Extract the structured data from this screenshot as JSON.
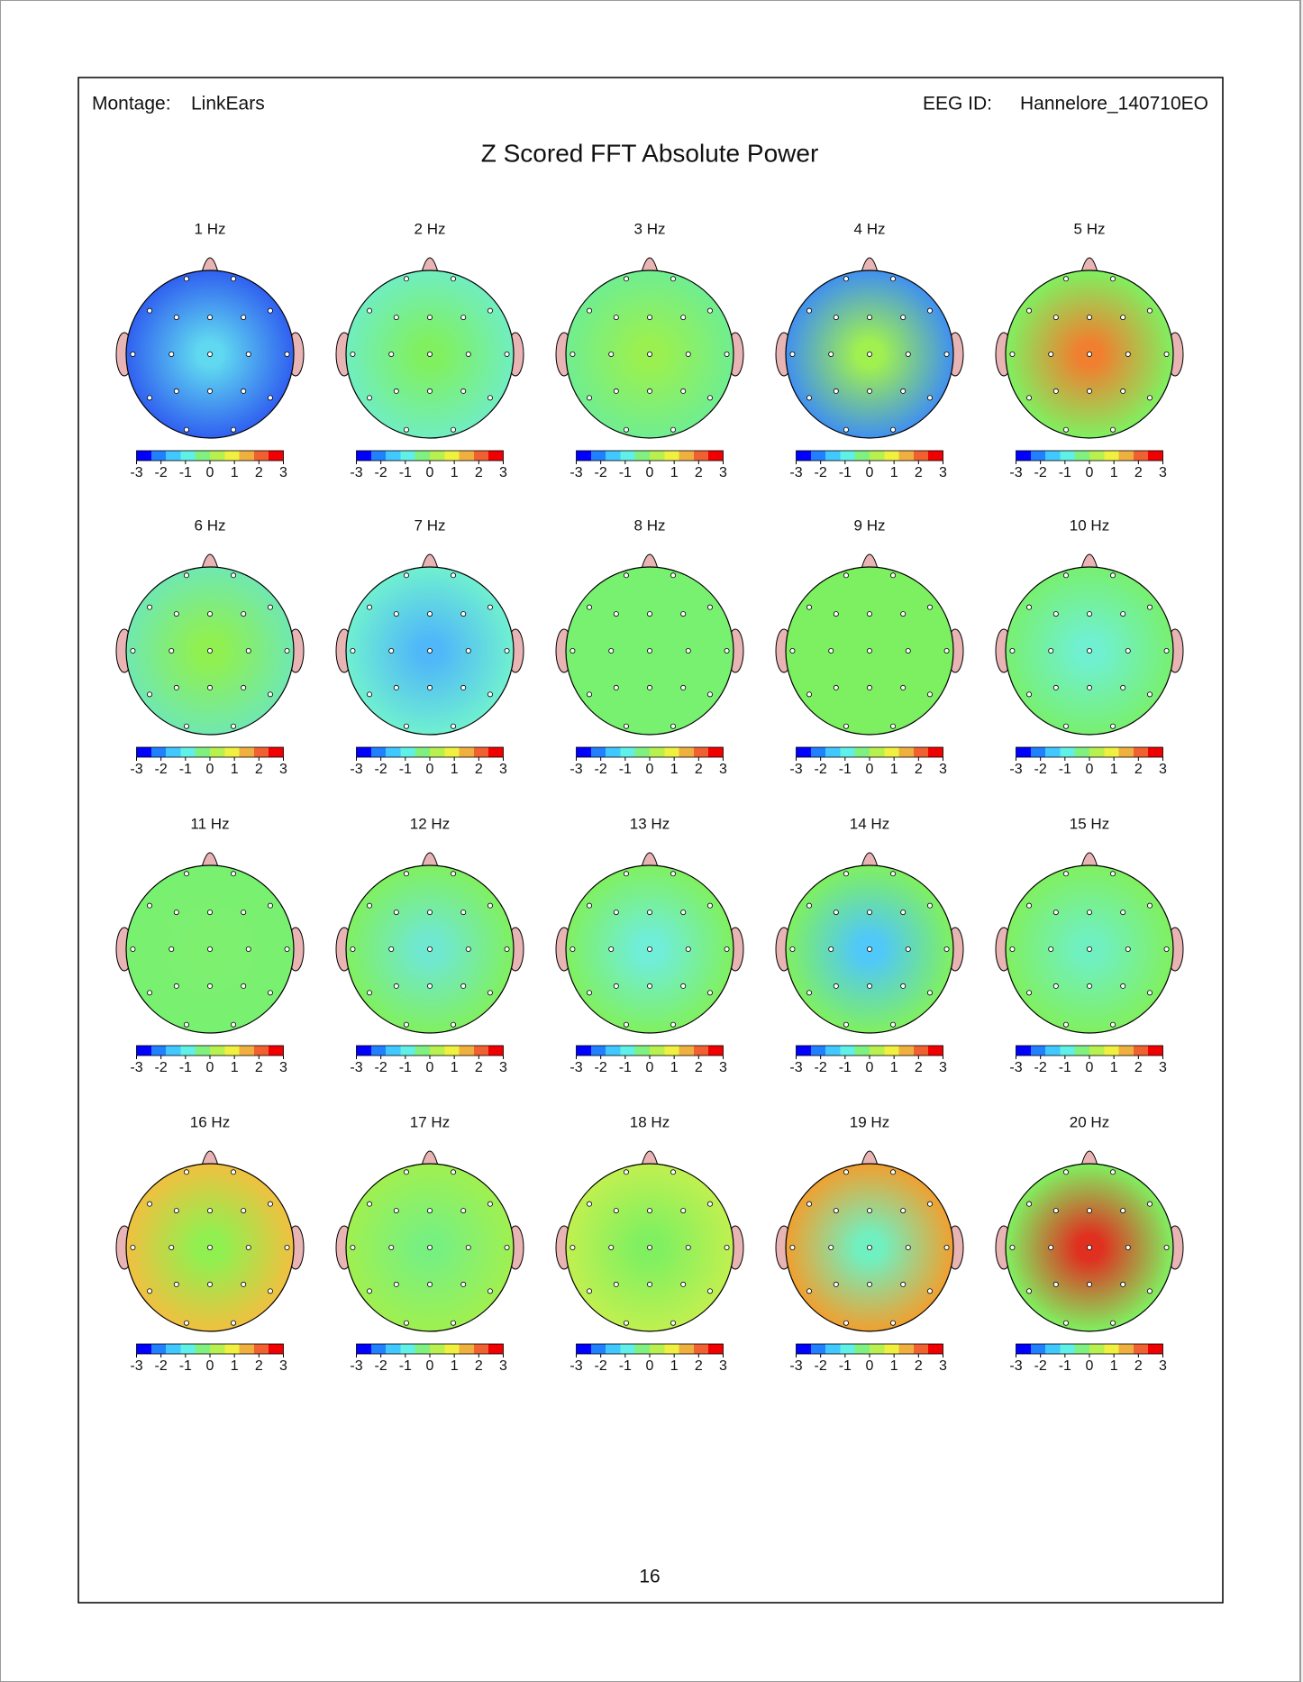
{
  "header": {
    "montage_label": "Montage:",
    "montage": "LinkEars",
    "eeg_id_label": "EEG ID:",
    "eeg_id": "Hannelore_140710EO"
  },
  "title": "Z Scored FFT Absolute Power",
  "scale_lim": [
    -3,
    3
  ],
  "scale_ticks": [
    -3,
    -2,
    -1,
    0,
    1,
    2,
    3
  ],
  "colorbar_colors": [
    "#0000ff",
    "#2080ff",
    "#40c8ff",
    "#60f0e8",
    "#80f080",
    "#b8f050",
    "#f0f040",
    "#f0b040",
    "#f06030",
    "#f00000"
  ],
  "maps": [
    {
      "label": "1 Hz",
      "center_color": "#60d8f0",
      "edge_color": "#3060f0"
    },
    {
      "label": "2 Hz",
      "center_color": "#80f060",
      "edge_color": "#70eec0"
    },
    {
      "label": "3 Hz",
      "center_color": "#9af050",
      "edge_color": "#70ee90"
    },
    {
      "label": "4 Hz",
      "center_color": "#a0f050",
      "edge_color": "#4090f0"
    },
    {
      "label": "5 Hz",
      "center_color": "#f08030",
      "edge_color": "#80f060"
    },
    {
      "label": "6 Hz",
      "center_color": "#90f050",
      "edge_color": "#70e8b0"
    },
    {
      "label": "7 Hz",
      "center_color": "#50b8f8",
      "edge_color": "#70f0d0"
    },
    {
      "label": "8 Hz",
      "center_color": "#78f070",
      "edge_color": "#78f070"
    },
    {
      "label": "9 Hz",
      "center_color": "#7cf060",
      "edge_color": "#7cf060"
    },
    {
      "label": "10 Hz",
      "center_color": "#70f0d0",
      "edge_color": "#78f070"
    },
    {
      "label": "11 Hz",
      "center_color": "#7ef070",
      "edge_color": "#78f070"
    },
    {
      "label": "12 Hz",
      "center_color": "#70e8d0",
      "edge_color": "#80f060"
    },
    {
      "label": "13 Hz",
      "center_color": "#70eed8",
      "edge_color": "#80f060"
    },
    {
      "label": "14 Hz",
      "center_color": "#50c8f8",
      "edge_color": "#80f060"
    },
    {
      "label": "15 Hz",
      "center_color": "#70f0c0",
      "edge_color": "#80f060"
    },
    {
      "label": "16 Hz",
      "center_color": "#90f050",
      "edge_color": "#f0c040"
    },
    {
      "label": "17 Hz",
      "center_color": "#78f080",
      "edge_color": "#a0f050"
    },
    {
      "label": "18 Hz",
      "center_color": "#80f060",
      "edge_color": "#c0f050"
    },
    {
      "label": "19 Hz",
      "center_color": "#70f0c0",
      "edge_color": "#f0a030"
    },
    {
      "label": "20 Hz",
      "center_color": "#e03020",
      "edge_color": "#80f060"
    }
  ],
  "page_number": 16
}
